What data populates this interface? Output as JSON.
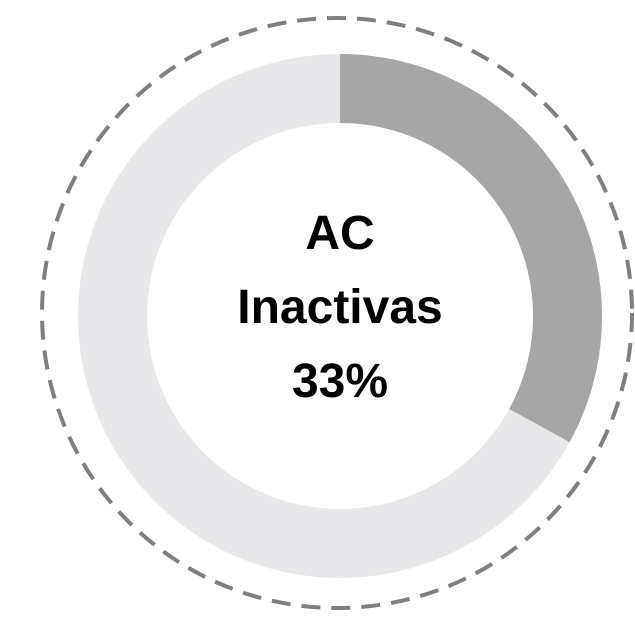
{
  "chart_data": {
    "type": "donut",
    "title": "AC Inactivas",
    "values": [
      33,
      67
    ],
    "value_labels": [
      "33%",
      null
    ],
    "colors": [
      "#a6a6a6",
      "#e8e8eb"
    ]
  }
}
